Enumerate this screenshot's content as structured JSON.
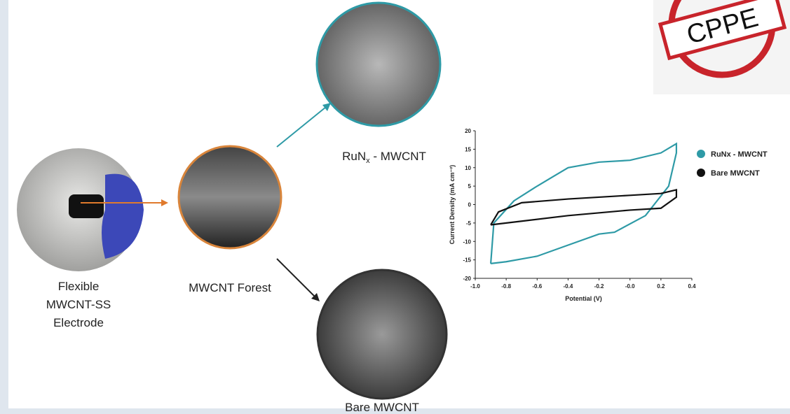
{
  "diagram": {
    "stamp": "CPPE",
    "electrode_label": [
      "Flexible",
      "MWCNT-SS",
      "Electrode"
    ],
    "forest_label": "MWCNT Forest",
    "runx_label": {
      "base": "RuN",
      "sub": "x",
      "rest": " - MWCNT"
    },
    "bare_label": "Bare MWCNT"
  },
  "chart_data": {
    "type": "line",
    "xlabel": "Potential (V)",
    "ylabel": "Current Density (mA cm⁻²)",
    "xlim": [
      -1.0,
      0.4
    ],
    "ylim": [
      -20,
      20
    ],
    "xticks": [
      {
        "value": -1.0,
        "label": "-1.0"
      },
      -0.8,
      -0.6,
      -0.4,
      -0.2,
      {
        "value": 0,
        "label": "-0.0"
      },
      0.2,
      0.4
    ],
    "yticks": [
      20,
      15,
      10,
      5,
      0,
      -5,
      -10,
      -15,
      -20
    ],
    "legend": "right",
    "series": [
      {
        "name": "RuNx - MWCNT",
        "color": "#2e9aa6",
        "x": [
          -0.9,
          -0.88,
          -0.75,
          -0.6,
          -0.4,
          -0.2,
          0.0,
          0.2,
          0.3,
          0.3,
          0.25,
          0.1,
          -0.1,
          -0.2,
          -0.4,
          -0.6,
          -0.8,
          -0.9
        ],
        "values": [
          -16,
          -5,
          1,
          5,
          10,
          11.5,
          12,
          14,
          16.5,
          14,
          5,
          -3,
          -7.5,
          -8,
          -11,
          -14,
          -15.5,
          -16
        ]
      },
      {
        "name": "Bare MWCNT",
        "color": "#111111",
        "x": [
          -0.9,
          -0.85,
          -0.7,
          -0.4,
          0.0,
          0.2,
          0.3,
          0.3,
          0.2,
          0.0,
          -0.4,
          -0.7,
          -0.9
        ],
        "values": [
          -5.5,
          -2,
          0.5,
          1.5,
          2.5,
          3,
          4,
          2,
          -1,
          -1.5,
          -3,
          -4.5,
          -5.5
        ]
      }
    ]
  }
}
